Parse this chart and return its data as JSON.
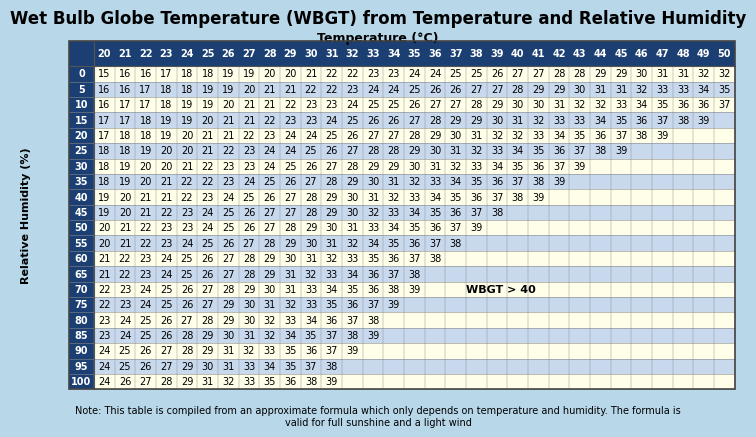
{
  "title": "Wet Bulb Globe Temperature (WBGT) from Temperature and Relative Humidity",
  "xlabel": "Temperature (°C)",
  "ylabel": "Relative Humidity (%)",
  "temp_cols": [
    20,
    21,
    22,
    23,
    24,
    25,
    26,
    27,
    28,
    29,
    30,
    31,
    32,
    33,
    34,
    35,
    36,
    37,
    38,
    39,
    40,
    41,
    42,
    43,
    44,
    45,
    46,
    47,
    48,
    49,
    50
  ],
  "rh_rows": [
    0,
    5,
    10,
    15,
    20,
    25,
    30,
    35,
    40,
    45,
    50,
    55,
    60,
    65,
    70,
    75,
    80,
    85,
    90,
    95,
    100
  ],
  "table_data": [
    [
      15,
      16,
      16,
      17,
      18,
      18,
      19,
      19,
      20,
      20,
      21,
      22,
      22,
      23,
      23,
      24,
      24,
      25,
      25,
      26,
      27,
      27,
      28,
      28,
      29,
      29,
      30,
      31,
      31,
      32,
      32
    ],
    [
      16,
      16,
      17,
      18,
      18,
      19,
      19,
      20,
      21,
      21,
      22,
      22,
      23,
      24,
      24,
      25,
      26,
      26,
      27,
      27,
      28,
      29,
      29,
      30,
      31,
      31,
      32,
      33,
      33,
      34,
      35
    ],
    [
      16,
      17,
      17,
      18,
      19,
      19,
      20,
      21,
      21,
      22,
      23,
      23,
      24,
      25,
      25,
      26,
      27,
      27,
      28,
      29,
      30,
      30,
      31,
      32,
      32,
      33,
      34,
      35,
      36,
      36,
      37
    ],
    [
      17,
      17,
      18,
      19,
      19,
      20,
      21,
      21,
      22,
      23,
      23,
      24,
      25,
      26,
      26,
      27,
      28,
      29,
      29,
      30,
      31,
      32,
      33,
      33,
      34,
      35,
      36,
      37,
      38,
      39,
      null
    ],
    [
      17,
      18,
      18,
      19,
      20,
      21,
      21,
      22,
      23,
      24,
      24,
      25,
      26,
      27,
      27,
      28,
      29,
      30,
      31,
      32,
      32,
      33,
      34,
      35,
      36,
      37,
      38,
      39,
      null,
      null,
      null
    ],
    [
      18,
      18,
      19,
      20,
      20,
      21,
      22,
      23,
      24,
      24,
      25,
      26,
      27,
      28,
      28,
      29,
      30,
      31,
      32,
      33,
      34,
      35,
      36,
      37,
      38,
      39,
      null,
      null,
      null,
      null,
      null
    ],
    [
      18,
      19,
      20,
      20,
      21,
      22,
      23,
      23,
      24,
      25,
      26,
      27,
      28,
      29,
      29,
      30,
      31,
      32,
      33,
      34,
      35,
      36,
      37,
      39,
      null,
      null,
      null,
      null,
      null,
      null,
      null
    ],
    [
      18,
      19,
      20,
      21,
      22,
      22,
      23,
      24,
      25,
      26,
      27,
      28,
      29,
      30,
      31,
      32,
      33,
      34,
      35,
      36,
      37,
      38,
      39,
      null,
      null,
      null,
      null,
      null,
      null,
      null,
      null
    ],
    [
      19,
      20,
      21,
      21,
      22,
      23,
      24,
      25,
      26,
      27,
      28,
      29,
      30,
      31,
      32,
      33,
      34,
      35,
      36,
      37,
      38,
      39,
      null,
      null,
      null,
      null,
      null,
      null,
      null,
      null,
      null
    ],
    [
      19,
      20,
      21,
      22,
      23,
      24,
      25,
      26,
      27,
      27,
      28,
      29,
      30,
      32,
      33,
      34,
      35,
      36,
      37,
      38,
      null,
      null,
      null,
      null,
      null,
      null,
      null,
      null,
      null,
      null,
      null
    ],
    [
      20,
      21,
      22,
      23,
      23,
      24,
      25,
      26,
      27,
      28,
      29,
      30,
      31,
      33,
      34,
      35,
      36,
      37,
      39,
      null,
      null,
      null,
      null,
      null,
      null,
      null,
      null,
      null,
      null,
      null,
      null
    ],
    [
      20,
      21,
      22,
      23,
      24,
      25,
      26,
      27,
      28,
      29,
      30,
      31,
      32,
      34,
      35,
      36,
      37,
      38,
      null,
      null,
      null,
      null,
      null,
      null,
      null,
      null,
      null,
      null,
      null,
      null,
      null
    ],
    [
      21,
      22,
      23,
      24,
      25,
      26,
      27,
      28,
      29,
      30,
      31,
      32,
      33,
      35,
      36,
      37,
      38,
      null,
      null,
      null,
      null,
      null,
      null,
      null,
      null,
      null,
      null,
      null,
      null,
      null,
      null
    ],
    [
      21,
      22,
      23,
      24,
      25,
      26,
      27,
      28,
      29,
      31,
      32,
      33,
      34,
      36,
      37,
      38,
      null,
      null,
      null,
      null,
      null,
      null,
      null,
      null,
      null,
      null,
      null,
      null,
      null,
      null,
      null
    ],
    [
      22,
      23,
      24,
      25,
      26,
      27,
      28,
      29,
      30,
      31,
      33,
      34,
      35,
      36,
      38,
      39,
      null,
      null,
      null,
      null,
      null,
      null,
      null,
      null,
      null,
      null,
      null,
      null,
      null,
      null,
      null
    ],
    [
      22,
      23,
      24,
      25,
      26,
      27,
      29,
      30,
      31,
      32,
      33,
      35,
      36,
      37,
      39,
      null,
      null,
      null,
      null,
      null,
      null,
      null,
      null,
      null,
      null,
      null,
      null,
      null,
      null,
      null,
      null
    ],
    [
      23,
      24,
      25,
      26,
      27,
      28,
      29,
      30,
      32,
      33,
      34,
      36,
      37,
      38,
      null,
      null,
      null,
      null,
      null,
      null,
      null,
      null,
      null,
      null,
      null,
      null,
      null,
      null,
      null,
      null,
      null
    ],
    [
      23,
      24,
      25,
      26,
      28,
      29,
      30,
      31,
      32,
      34,
      35,
      37,
      38,
      39,
      null,
      null,
      null,
      null,
      null,
      null,
      null,
      null,
      null,
      null,
      null,
      null,
      null,
      null,
      null,
      null,
      null
    ],
    [
      24,
      25,
      26,
      27,
      28,
      29,
      31,
      32,
      33,
      35,
      36,
      37,
      39,
      null,
      null,
      null,
      null,
      null,
      null,
      null,
      null,
      null,
      null,
      null,
      null,
      null,
      null,
      null,
      null,
      null,
      null
    ],
    [
      24,
      25,
      26,
      27,
      29,
      30,
      31,
      33,
      34,
      35,
      37,
      38,
      null,
      null,
      null,
      null,
      null,
      null,
      null,
      null,
      null,
      null,
      null,
      null,
      null,
      null,
      null,
      null,
      null,
      null,
      null
    ],
    [
      24,
      26,
      27,
      28,
      29,
      31,
      32,
      33,
      35,
      36,
      38,
      39,
      null,
      null,
      null,
      null,
      null,
      null,
      null,
      null,
      null,
      null,
      null,
      null,
      null,
      null,
      null,
      null,
      null,
      null,
      null
    ]
  ],
  "header_bg": "#1b3f72",
  "header_text": "#ffffff",
  "row_odd_bg": "#c8d8ed",
  "row_even_bg": "#fffee8",
  "outer_bg": "#b8d8ea",
  "note_text": "Note: This table is compiled from an approximate formula which only depends on temperature and humidity. The formula is\nvalid for full sunshine and a light wind",
  "wbgt_annotation": "WBGT > 40",
  "title_fontsize": 12,
  "header_fontsize": 7,
  "cell_fontsize": 7,
  "note_fontsize": 7,
  "ylabel_fontsize": 8
}
